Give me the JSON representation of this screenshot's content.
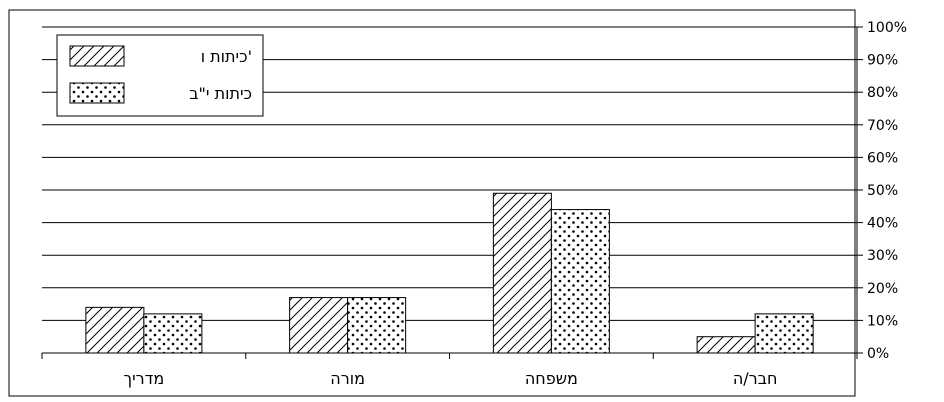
{
  "chart_data": {
    "type": "bar",
    "categories": [
      "מדריך",
      "מורה",
      "משפחה",
      "חבר/ה"
    ],
    "series": [
      {
        "name": "כיתות ו'",
        "values": [
          14,
          17,
          49,
          5
        ],
        "pattern": "diagonal-hatch"
      },
      {
        "name": "כיתות י\"ב",
        "values": [
          12,
          17,
          44,
          12
        ],
        "pattern": "dots"
      }
    ],
    "y_axis": {
      "min": 0,
      "max": 100,
      "step": 10,
      "tick_labels": [
        "0%",
        "10%",
        "20%",
        "30%",
        "40%",
        "50%",
        "60%",
        "70%",
        "80%",
        "90%",
        "100%"
      ],
      "position": "right"
    },
    "grid": true,
    "legend_position": "top-left",
    "colors": {
      "bar_fill": "#ffffff",
      "stroke": "#000000"
    }
  }
}
